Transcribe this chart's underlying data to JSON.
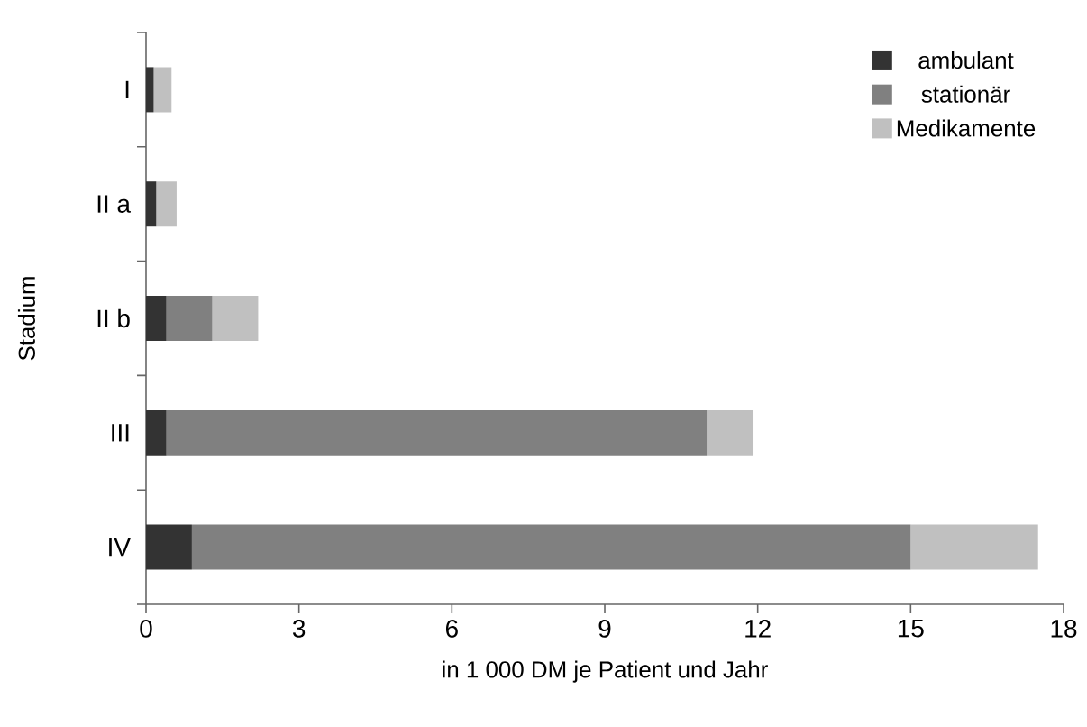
{
  "chart_data": {
    "type": "bar",
    "orientation": "horizontal",
    "stacked": true,
    "xlabel": "in 1 000 DM je Patient und Jahr",
    "ylabel": "Stadium",
    "categories": [
      "I",
      "II a",
      "II b",
      "III",
      "IV"
    ],
    "series": [
      {
        "name": "ambulant",
        "color": "#333333",
        "values": [
          0.15,
          0.2,
          0.4,
          0.4,
          0.9
        ]
      },
      {
        "name": "stationär",
        "color": "#808080",
        "values": [
          0,
          0,
          0.9,
          10.6,
          14.1
        ]
      },
      {
        "name": "Medikamente",
        "color": "#c0c0c0",
        "values": [
          0.35,
          0.4,
          0.9,
          0.9,
          2.5
        ]
      }
    ],
    "xlim": [
      0,
      18
    ],
    "xticks": [
      0,
      3,
      6,
      9,
      12,
      15,
      18
    ],
    "grid": false,
    "legend": "top right"
  }
}
